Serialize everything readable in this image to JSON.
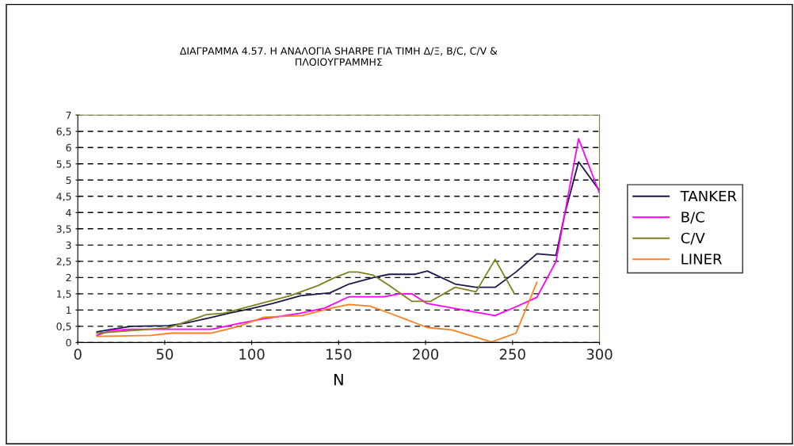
{
  "chart_data": {
    "type": "line",
    "title": "ΔΙΑΓΡΑΜΜΑ 4.57. Η ΑΝΑΛΟΓΙΑ SHARPE ΓΙΑ ΤΙΜΗ Δ/Ξ, B/C, C/V &\nΠΛΟΙΟΥΓΡΑΜΜΗΣ",
    "xlabel": "N",
    "xlim": [
      0,
      300
    ],
    "xticks": [
      0,
      50,
      100,
      150,
      200,
      250,
      300
    ],
    "ylim": [
      0,
      7
    ],
    "yticks": [
      0,
      {
        "value": 0.5,
        "label": "0,5"
      },
      1,
      {
        "value": 1.5,
        "label": "1,5"
      },
      2,
      {
        "value": 2.5,
        "label": "2,5"
      },
      3,
      {
        "value": 3.5,
        "label": "3,5"
      },
      4,
      {
        "value": 4.5,
        "label": "4,5"
      },
      5,
      {
        "value": 5.5,
        "label": "5,5"
      },
      6,
      {
        "value": 6.5,
        "label": "6,5"
      },
      7
    ],
    "grid": "y",
    "legend": "right",
    "line_style": "solid",
    "marker": "none",
    "series": [
      {
        "name": "TANKER",
        "color": "#1a1a4a",
        "x": [
          11,
          19,
          31,
          52,
          62,
          75,
          87,
          100,
          112,
          128,
          145,
          156,
          170,
          179,
          194,
          201,
          217,
          229,
          240,
          252,
          264,
          275,
          280,
          288,
          300
        ],
        "values": [
          0.33,
          0.4,
          0.5,
          0.52,
          0.6,
          0.75,
          0.9,
          1.05,
          1.2,
          1.44,
          1.53,
          1.8,
          2.0,
          2.1,
          2.1,
          2.2,
          1.8,
          1.7,
          1.7,
          2.17,
          2.73,
          2.68,
          3.95,
          5.56,
          4.68
        ]
      },
      {
        "name": "B/C",
        "color": "#ff00ff",
        "x": [
          11,
          19,
          31,
          77,
          92,
          107,
          128,
          142,
          156,
          176,
          185,
          192,
          201,
          220,
          240,
          252,
          264,
          275,
          280,
          288,
          300
        ],
        "values": [
          0.22,
          0.37,
          0.41,
          0.41,
          0.58,
          0.73,
          0.9,
          1.06,
          1.41,
          1.41,
          1.5,
          1.5,
          1.2,
          1.02,
          0.83,
          1.1,
          1.39,
          2.49,
          3.95,
          6.27,
          4.6
        ]
      },
      {
        "name": "C/V",
        "color": "#808020",
        "x": [
          11,
          52,
          74,
          84,
          122,
          138,
          147,
          156,
          161,
          170,
          179,
          192,
          203,
          217,
          229,
          240,
          251
        ],
        "values": [
          0.29,
          0.45,
          0.86,
          0.9,
          1.44,
          1.75,
          1.98,
          2.17,
          2.17,
          2.07,
          1.76,
          1.27,
          1.27,
          1.7,
          1.56,
          2.56,
          1.51
        ]
      },
      {
        "name": "LINER",
        "color": "#ff7f1f",
        "x": [
          11,
          42,
          54,
          77,
          92,
          107,
          129,
          145,
          156,
          168,
          182,
          201,
          215,
          238,
          252,
          264
        ],
        "values": [
          0.19,
          0.22,
          0.29,
          0.29,
          0.49,
          0.78,
          0.83,
          1.05,
          1.17,
          1.12,
          0.85,
          0.46,
          0.39,
          0.02,
          0.29,
          1.85
        ]
      }
    ]
  }
}
